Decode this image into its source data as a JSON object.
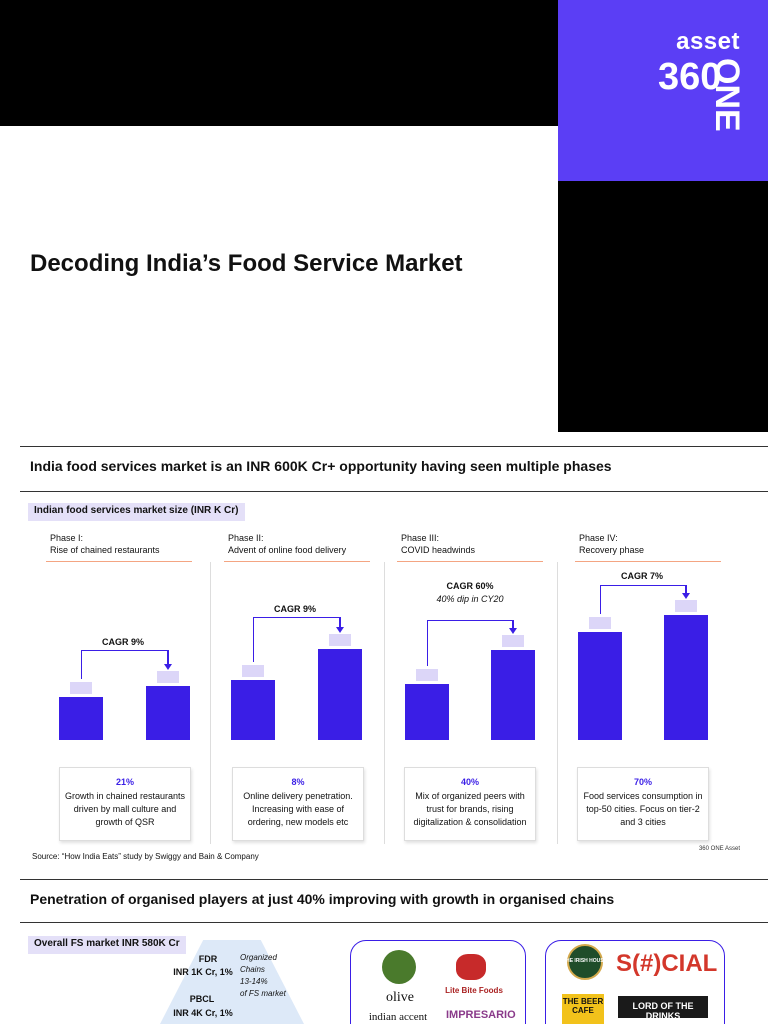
{
  "header": {
    "logo_top": "asset",
    "logo_num": "360",
    "logo_one": "ONE",
    "title": "Decoding India’s Food Service Market"
  },
  "section1": {
    "title": "India food services market is an INR 600K Cr+ opportunity having seen multiple phases",
    "chart_label": "Indian food services market size (INR K Cr)",
    "phases": [
      {
        "no": "Phase I:",
        "desc": "Rise of chained restaurants",
        "cagr": "CAGR 9%",
        "note": "",
        "pct": "21%",
        "text": "Growth in chained restaurants driven by mall culture and growth of QSR"
      },
      {
        "no": "Phase II:",
        "desc": "Advent of online food delivery",
        "cagr": "CAGR 9%",
        "note": "",
        "pct": "8%",
        "text": "Online delivery penetration. Increasing with ease of ordering, new models etc"
      },
      {
        "no": "Phase III:",
        "desc": "COVID headwinds",
        "cagr": "CAGR 60%",
        "note": "40% dip in CY20",
        "pct": "40%",
        "text": "Mix of organized peers with trust for brands, rising digitalization & consolidation"
      },
      {
        "no": "Phase IV:",
        "desc": "Recovery phase",
        "cagr": "CAGR 7%",
        "note": "",
        "pct": "70%",
        "text": "Food services consumption in top-50 cities. Focus on tier-2 and 3 cities"
      }
    ],
    "source": "Source: “How India Eats” study by Swiggy and Bain & Company",
    "credit": "360 ONE Asset"
  },
  "chart_data": {
    "type": "bar",
    "title": "Indian food services market size (INR K Cr)",
    "note": "Bar values not labeled; relative heights estimated on a 0–100 index",
    "categories": [
      "Phase I start",
      "Phase I end",
      "Phase II start",
      "Phase II end",
      "Phase III start",
      "Phase III end",
      "Phase IV start",
      "Phase IV end"
    ],
    "values": [
      36,
      45,
      50,
      76,
      47,
      75,
      90,
      104
    ],
    "ylim": [
      0,
      110
    ],
    "annotations": [
      "CAGR 9%",
      "CAGR 9%",
      "CAGR 60%",
      "CAGR 7%"
    ]
  },
  "section2": {
    "title": "Penetration of organised players at just 40% improving with growth in organised chains",
    "chip": "Overall FS market INR 580K Cr",
    "pyramid": [
      {
        "name": "FDR",
        "value": "INR 1K Cr, 1%"
      },
      {
        "name": "PBCL",
        "value": "INR 4K Cr, 1%"
      }
    ],
    "organized_note": [
      "Organized",
      "Chains",
      "13-14%",
      "of FS market"
    ],
    "brands": [
      "olive",
      "Lite Bite Foods",
      "indian accent",
      "IMPRESARIO",
      "THE IRISH HOUSE",
      "S(#)CIAL",
      "THE BEER CAFE",
      "LORD OF THE DRINKS"
    ]
  },
  "colors": {
    "brand_purple": "#5b3ef5",
    "bar": "#3a1ee6",
    "accent_line": "#f4a582"
  }
}
